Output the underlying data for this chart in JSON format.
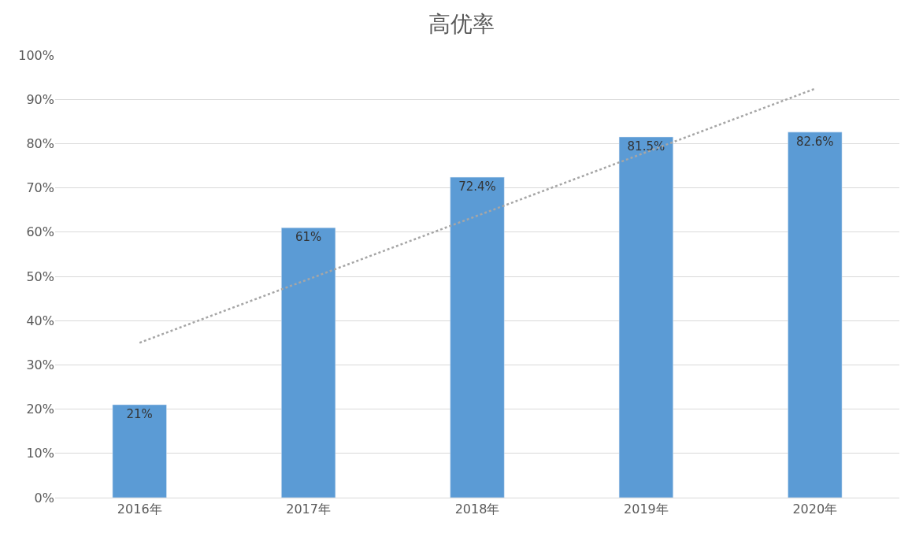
{
  "chart_data": {
    "type": "bar",
    "title": "高优率",
    "categories": [
      "2016年",
      "2017年",
      "2018年",
      "2019年",
      "2020年"
    ],
    "series": [
      {
        "color": "#5b9bd5",
        "values": [
          21,
          61,
          72.4,
          81.5,
          82.6
        ],
        "value_labels": [
          "21%",
          "61%",
          "72.4%",
          "81.5%",
          "82.6%"
        ]
      },
      {
        "type": "line",
        "color": "#a6a6a6",
        "line_style": "dotted",
        "marker": "none",
        "x": [
          "2016年",
          "2020年"
        ],
        "values": [
          35,
          92.4
        ]
      }
    ],
    "ylim": [
      0,
      100
    ],
    "yticks": [
      {
        "value": 0,
        "label": "0%"
      },
      {
        "value": 10,
        "label": "10%"
      },
      {
        "value": 20,
        "label": "20%"
      },
      {
        "value": 30,
        "label": "30%"
      },
      {
        "value": 40,
        "label": "40%"
      },
      {
        "value": 50,
        "label": "50%"
      },
      {
        "value": 60,
        "label": "60%"
      },
      {
        "value": 70,
        "label": "70%"
      },
      {
        "value": 80,
        "label": "80%"
      },
      {
        "value": 90,
        "label": "90%"
      },
      {
        "value": 100,
        "label": "100%"
      }
    ],
    "grid": "y",
    "legend": false
  }
}
